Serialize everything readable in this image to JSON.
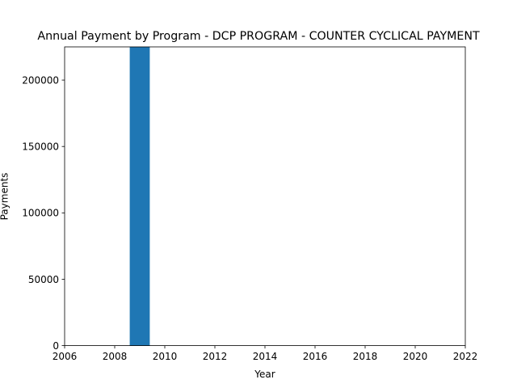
{
  "chart_data": {
    "type": "bar",
    "title": "Annual Payment by Program - DCP PROGRAM - COUNTER CYCLICAL PAYMENT",
    "xlabel": "Year",
    "ylabel": "Payments",
    "x": [
      2009
    ],
    "values": [
      225000
    ],
    "bar_width": 0.8,
    "xlim": [
      2006,
      2022
    ],
    "ylim": [
      0,
      225000
    ],
    "xticks": [
      2006,
      2008,
      2010,
      2012,
      2014,
      2016,
      2018,
      2020,
      2022
    ],
    "yticks": [
      0,
      50000,
      100000,
      150000,
      200000
    ],
    "bar_color": "#1f77b4",
    "grid": false,
    "legend": false
  }
}
